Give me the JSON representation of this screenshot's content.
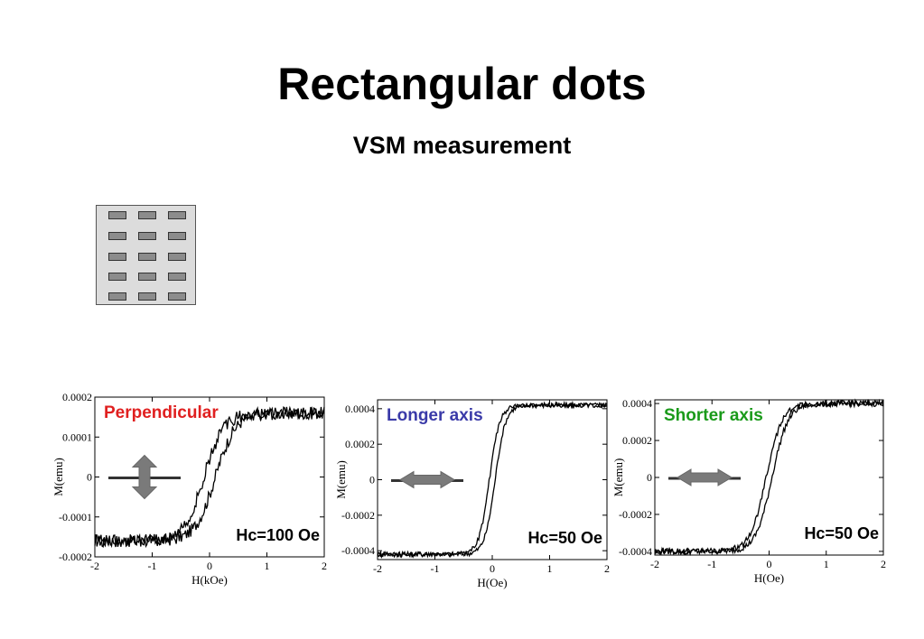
{
  "title": "Rectangular dots",
  "subtitle": "VSM measurement",
  "chart_data": [
    {
      "type": "line",
      "label": "Perpendicular",
      "label_color": "#e02020",
      "annotation": "Hc=100 Oe",
      "xlabel": "H(kOe)",
      "ylabel": "M(emu)",
      "xlim": [
        -2,
        2
      ],
      "ylim": [
        -0.0002,
        0.0002
      ],
      "xticks": [
        "-2",
        "-1",
        "0",
        "1",
        "2"
      ],
      "yticks": [
        "0.0002",
        "0.0001",
        "0",
        "-0.0001",
        "-0.0002"
      ],
      "ytick_values": [
        0.0002,
        0.0001,
        0,
        -0.0001,
        -0.0002
      ],
      "field_direction": "vertical",
      "saturation": 0.00016,
      "coercivity": 0.1,
      "width": 0.35,
      "noise": 1.6e-05,
      "series": [
        {
          "values": [
            [
              -2,
              -0.00015
            ],
            [
              -1.5,
              -0.000155
            ],
            [
              -1,
              -0.000152
            ],
            [
              -0.5,
              -0.00014
            ],
            [
              -0.25,
              -0.00011
            ],
            [
              0,
              -4e-05
            ],
            [
              0.25,
              5e-05
            ],
            [
              0.5,
              0.00011
            ],
            [
              1,
              0.00014
            ],
            [
              1.5,
              0.000152
            ],
            [
              2,
              0.00016
            ]
          ]
        },
        {
          "values": [
            [
              2,
              0.00016
            ],
            [
              1.5,
              0.000155
            ],
            [
              1,
              0.000148
            ],
            [
              0.5,
              0.00013
            ],
            [
              0.25,
              0.0001
            ],
            [
              0,
              3e-05
            ],
            [
              -0.25,
              -6e-05
            ],
            [
              -0.5,
              -0.00012
            ],
            [
              -1,
              -0.000148
            ],
            [
              -1.5,
              -0.000155
            ],
            [
              -2,
              -0.000152
            ]
          ]
        }
      ]
    },
    {
      "type": "line",
      "label": "Longer axis",
      "label_color": "#3a3aa8",
      "annotation": "Hc=50 Oe",
      "xlabel": "H(Oe)",
      "ylabel": "M(emu)",
      "xlim": [
        -2,
        2
      ],
      "ylim": [
        -0.00045,
        0.00045
      ],
      "xticks": [
        "-2",
        "-1",
        "0",
        "1",
        "2"
      ],
      "yticks": [
        "0.0004",
        "0.0002",
        "0",
        "-0.0002",
        "-0.0004"
      ],
      "ytick_values": [
        0.0004,
        0.0002,
        0,
        -0.0002,
        -0.0004
      ],
      "field_direction": "horizontal",
      "saturation": 0.00042,
      "coercivity": 0.05,
      "width": 0.18,
      "noise": 1.4e-05,
      "series": [
        {
          "values": [
            [
              -2,
              -0.00042
            ],
            [
              -1,
              -0.000405
            ],
            [
              -0.5,
              -0.00035
            ],
            [
              -0.2,
              -0.00025
            ],
            [
              0,
              -5e-05
            ],
            [
              0.1,
              0.0002
            ],
            [
              0.3,
              0.00034
            ],
            [
              1,
              0.0004
            ],
            [
              2,
              0.00042
            ]
          ]
        },
        {
          "values": [
            [
              2,
              0.00042
            ],
            [
              1,
              0.000405
            ],
            [
              0.5,
              0.00036
            ],
            [
              0.2,
              0.00027
            ],
            [
              0,
              6e-05
            ],
            [
              -0.1,
              -0.0002
            ],
            [
              -0.3,
              -0.00034
            ],
            [
              -1,
              -0.0004
            ],
            [
              -2,
              -0.00042
            ]
          ]
        }
      ]
    },
    {
      "type": "line",
      "label": "Shorter axis",
      "label_color": "#1a9a1a",
      "annotation": "Hc=50 Oe",
      "xlabel": "H(Oe)",
      "ylabel": "M(emu)",
      "xlim": [
        -2,
        2
      ],
      "ylim": [
        -0.00042,
        0.00042
      ],
      "xticks": [
        "-2",
        "-1",
        "0",
        "1",
        "2"
      ],
      "yticks": [
        "0.0004",
        "0.0002",
        "0",
        "-0.0002",
        "-0.0004"
      ],
      "ytick_values": [
        0.0004,
        0.0002,
        0,
        -0.0002,
        -0.0004
      ],
      "field_direction": "horizontal",
      "saturation": 0.0004,
      "coercivity": 0.05,
      "width": 0.28,
      "noise": 1.6e-05,
      "series": [
        {
          "values": [
            [
              -2,
              -0.0004
            ],
            [
              -1,
              -0.00037
            ],
            [
              -0.5,
              -0.0003
            ],
            [
              -0.2,
              -0.00022
            ],
            [
              0,
              -4e-05
            ],
            [
              0.1,
              0.00017
            ],
            [
              0.4,
              0.00031
            ],
            [
              1,
              0.00037
            ],
            [
              2,
              0.0004
            ]
          ]
        },
        {
          "values": [
            [
              2,
              0.0004
            ],
            [
              1,
              0.00037
            ],
            [
              0.5,
              0.00031
            ],
            [
              0.2,
              0.00023
            ],
            [
              0,
              5e-05
            ],
            [
              -0.1,
              -0.00017
            ],
            [
              -0.4,
              -0.00031
            ],
            [
              -1,
              -0.00037
            ],
            [
              -2,
              -0.0004
            ]
          ]
        }
      ]
    }
  ]
}
